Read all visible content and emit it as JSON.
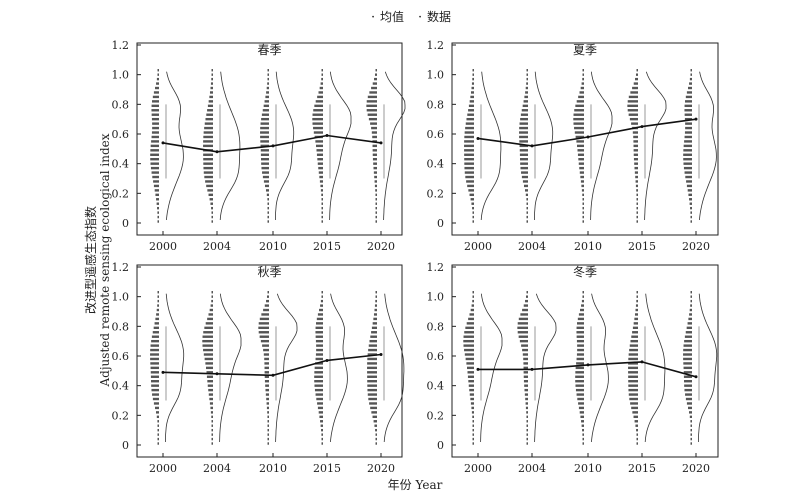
{
  "legend": {
    "items": [
      {
        "label": "均值"
      },
      {
        "label": "数据"
      }
    ]
  },
  "ylabel_cn": "改进型遥感生态指数",
  "ylabel_en": "Adjusted remote sensing ecological index",
  "xlabel": "年份 Year",
  "colors": {
    "bars": "#555555",
    "mean_line": "#111111",
    "curve": "#333333",
    "axis": "#222222"
  },
  "chart_data": [
    {
      "type": "line",
      "title": "春季",
      "categories": [
        "2000",
        "2004",
        "2010",
        "2015",
        "2020"
      ],
      "series": [
        {
          "name": "均值",
          "values": [
            0.54,
            0.48,
            0.52,
            0.59,
            0.54
          ]
        }
      ],
      "ylim": [
        0,
        1.2
      ],
      "yticks": [
        "0",
        "0.2",
        "0.4",
        "0.6",
        "0.8",
        "1.0",
        "1.2"
      ],
      "grid": false
    },
    {
      "type": "line",
      "title": "夏季",
      "categories": [
        "2000",
        "2004",
        "2010",
        "2015",
        "2020"
      ],
      "series": [
        {
          "name": "均值",
          "values": [
            0.57,
            0.52,
            0.58,
            0.65,
            0.7
          ]
        }
      ],
      "ylim": [
        0,
        1.2
      ],
      "yticks": [
        "0",
        "0.2",
        "0.4",
        "0.6",
        "0.8",
        "1.0",
        "1.2"
      ],
      "grid": false
    },
    {
      "type": "line",
      "title": "秋季",
      "categories": [
        "2000",
        "2004",
        "2010",
        "2015",
        "2020"
      ],
      "series": [
        {
          "name": "均值",
          "values": [
            0.49,
            0.48,
            0.47,
            0.57,
            0.61
          ]
        }
      ],
      "ylim": [
        0,
        1.2
      ],
      "yticks": [
        "0",
        "0.2",
        "0.4",
        "0.6",
        "0.8",
        "1.0",
        "1.2"
      ],
      "grid": false
    },
    {
      "type": "line",
      "title": "冬季",
      "categories": [
        "2000",
        "2004",
        "2010",
        "2015",
        "2020"
      ],
      "series": [
        {
          "name": "均值",
          "values": [
            0.51,
            0.51,
            0.54,
            0.56,
            0.46
          ]
        }
      ],
      "ylim": [
        0,
        1.2
      ],
      "yticks": [
        "0",
        "0.2",
        "0.4",
        "0.6",
        "0.8",
        "1.0",
        "1.2"
      ],
      "grid": false
    }
  ]
}
